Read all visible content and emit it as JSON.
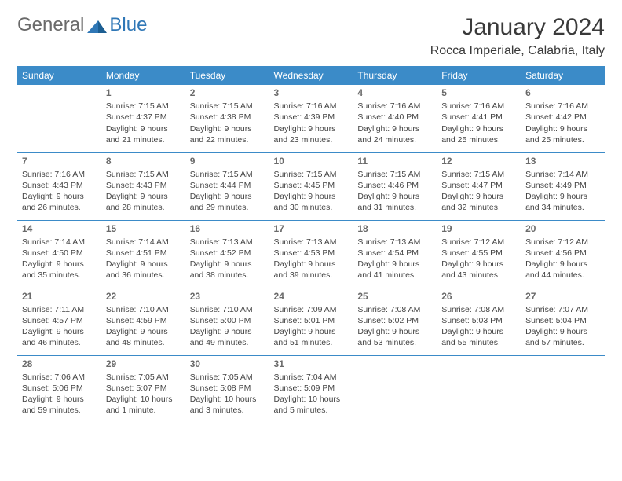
{
  "brand": {
    "part1": "General",
    "part2": "Blue"
  },
  "title": "January 2024",
  "location": "Rocca Imperiale, Calabria, Italy",
  "colors": {
    "header_bg": "#3b8bc8",
    "header_text": "#ffffff",
    "brand_gray": "#6a6a6a",
    "brand_blue": "#2f77b6",
    "body_text": "#444444",
    "rule": "#3b8bc8"
  },
  "weekdays": [
    "Sunday",
    "Monday",
    "Tuesday",
    "Wednesday",
    "Thursday",
    "Friday",
    "Saturday"
  ],
  "weeks": [
    [
      null,
      {
        "d": "1",
        "sr": "7:15 AM",
        "ss": "4:37 PM",
        "dl": "9 hours and 21 minutes."
      },
      {
        "d": "2",
        "sr": "7:15 AM",
        "ss": "4:38 PM",
        "dl": "9 hours and 22 minutes."
      },
      {
        "d": "3",
        "sr": "7:16 AM",
        "ss": "4:39 PM",
        "dl": "9 hours and 23 minutes."
      },
      {
        "d": "4",
        "sr": "7:16 AM",
        "ss": "4:40 PM",
        "dl": "9 hours and 24 minutes."
      },
      {
        "d": "5",
        "sr": "7:16 AM",
        "ss": "4:41 PM",
        "dl": "9 hours and 25 minutes."
      },
      {
        "d": "6",
        "sr": "7:16 AM",
        "ss": "4:42 PM",
        "dl": "9 hours and 25 minutes."
      }
    ],
    [
      {
        "d": "7",
        "sr": "7:16 AM",
        "ss": "4:43 PM",
        "dl": "9 hours and 26 minutes."
      },
      {
        "d": "8",
        "sr": "7:15 AM",
        "ss": "4:43 PM",
        "dl": "9 hours and 28 minutes."
      },
      {
        "d": "9",
        "sr": "7:15 AM",
        "ss": "4:44 PM",
        "dl": "9 hours and 29 minutes."
      },
      {
        "d": "10",
        "sr": "7:15 AM",
        "ss": "4:45 PM",
        "dl": "9 hours and 30 minutes."
      },
      {
        "d": "11",
        "sr": "7:15 AM",
        "ss": "4:46 PM",
        "dl": "9 hours and 31 minutes."
      },
      {
        "d": "12",
        "sr": "7:15 AM",
        "ss": "4:47 PM",
        "dl": "9 hours and 32 minutes."
      },
      {
        "d": "13",
        "sr": "7:14 AM",
        "ss": "4:49 PM",
        "dl": "9 hours and 34 minutes."
      }
    ],
    [
      {
        "d": "14",
        "sr": "7:14 AM",
        "ss": "4:50 PM",
        "dl": "9 hours and 35 minutes."
      },
      {
        "d": "15",
        "sr": "7:14 AM",
        "ss": "4:51 PM",
        "dl": "9 hours and 36 minutes."
      },
      {
        "d": "16",
        "sr": "7:13 AM",
        "ss": "4:52 PM",
        "dl": "9 hours and 38 minutes."
      },
      {
        "d": "17",
        "sr": "7:13 AM",
        "ss": "4:53 PM",
        "dl": "9 hours and 39 minutes."
      },
      {
        "d": "18",
        "sr": "7:13 AM",
        "ss": "4:54 PM",
        "dl": "9 hours and 41 minutes."
      },
      {
        "d": "19",
        "sr": "7:12 AM",
        "ss": "4:55 PM",
        "dl": "9 hours and 43 minutes."
      },
      {
        "d": "20",
        "sr": "7:12 AM",
        "ss": "4:56 PM",
        "dl": "9 hours and 44 minutes."
      }
    ],
    [
      {
        "d": "21",
        "sr": "7:11 AM",
        "ss": "4:57 PM",
        "dl": "9 hours and 46 minutes."
      },
      {
        "d": "22",
        "sr": "7:10 AM",
        "ss": "4:59 PM",
        "dl": "9 hours and 48 minutes."
      },
      {
        "d": "23",
        "sr": "7:10 AM",
        "ss": "5:00 PM",
        "dl": "9 hours and 49 minutes."
      },
      {
        "d": "24",
        "sr": "7:09 AM",
        "ss": "5:01 PM",
        "dl": "9 hours and 51 minutes."
      },
      {
        "d": "25",
        "sr": "7:08 AM",
        "ss": "5:02 PM",
        "dl": "9 hours and 53 minutes."
      },
      {
        "d": "26",
        "sr": "7:08 AM",
        "ss": "5:03 PM",
        "dl": "9 hours and 55 minutes."
      },
      {
        "d": "27",
        "sr": "7:07 AM",
        "ss": "5:04 PM",
        "dl": "9 hours and 57 minutes."
      }
    ],
    [
      {
        "d": "28",
        "sr": "7:06 AM",
        "ss": "5:06 PM",
        "dl": "9 hours and 59 minutes."
      },
      {
        "d": "29",
        "sr": "7:05 AM",
        "ss": "5:07 PM",
        "dl": "10 hours and 1 minute."
      },
      {
        "d": "30",
        "sr": "7:05 AM",
        "ss": "5:08 PM",
        "dl": "10 hours and 3 minutes."
      },
      {
        "d": "31",
        "sr": "7:04 AM",
        "ss": "5:09 PM",
        "dl": "10 hours and 5 minutes."
      },
      null,
      null,
      null
    ]
  ],
  "labels": {
    "sunrise": "Sunrise: ",
    "sunset": "Sunset: ",
    "daylight": "Daylight: "
  }
}
